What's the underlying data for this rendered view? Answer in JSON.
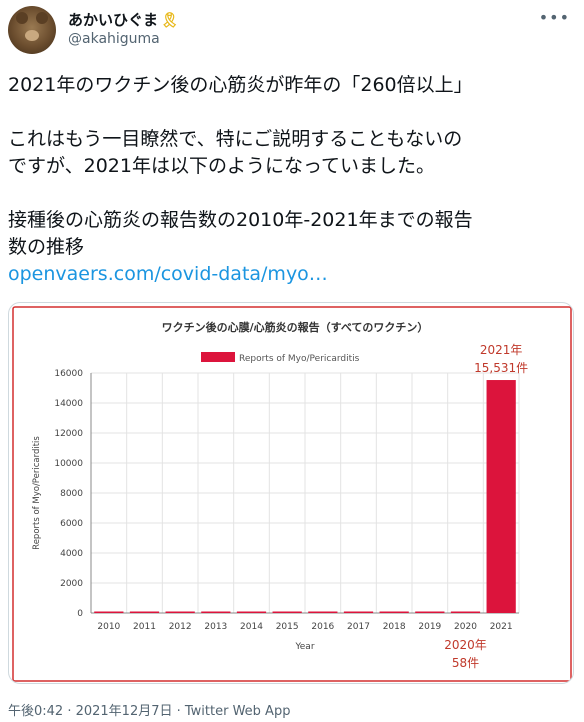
{
  "user": {
    "display_name": "あかいひぐま",
    "badge_icon": "yellow-ribbon-icon",
    "handle": "@akahiguma"
  },
  "menu_icon": "more-options-icon",
  "tweet": {
    "lines": [
      "2021年のワクチン後の心筋炎が昨年の「260倍以上」",
      "これはもう一目瞭然で、特にご説明することもないの",
      "ですが、2021年は以下のようになっていました。",
      "接種後の心筋炎の報告数の2010年-2021年までの報告",
      "数の推移"
    ],
    "link": "openvaers.com/covid-data/myo…"
  },
  "timestamp": "午後0:42 · 2021年12月7日 · Twitter Web App",
  "chart_data": {
    "type": "bar",
    "title": "ワクチン後の心膜/心筋炎の報告（すべてのワクチン）",
    "xlabel": "Year",
    "ylabel": "Reports of Myo/Pericarditis",
    "legend": "top-center",
    "grid": true,
    "ylim": [
      0,
      16000
    ],
    "yticks": [
      0,
      2000,
      4000,
      6000,
      8000,
      10000,
      12000,
      14000,
      16000
    ],
    "categories": [
      "2010",
      "2011",
      "2012",
      "2013",
      "2014",
      "2015",
      "2016",
      "2017",
      "2018",
      "2019",
      "2020",
      "2021"
    ],
    "series": [
      {
        "name": "Reports of Myo/Pericarditis",
        "color": "#dc143c",
        "values": [
          55,
          60,
          95,
          70,
          60,
          35,
          30,
          55,
          90,
          55,
          58,
          15531
        ]
      }
    ],
    "annotations": [
      {
        "category": "2021",
        "lines": [
          "2021年",
          "15,531件"
        ],
        "position": "above-bar",
        "color": "#c0392b"
      },
      {
        "category": "2020",
        "lines": [
          "2020年",
          "58件"
        ],
        "position": "below-axis",
        "color": "#c0392b"
      }
    ],
    "frame_color": "#d32f2f"
  }
}
